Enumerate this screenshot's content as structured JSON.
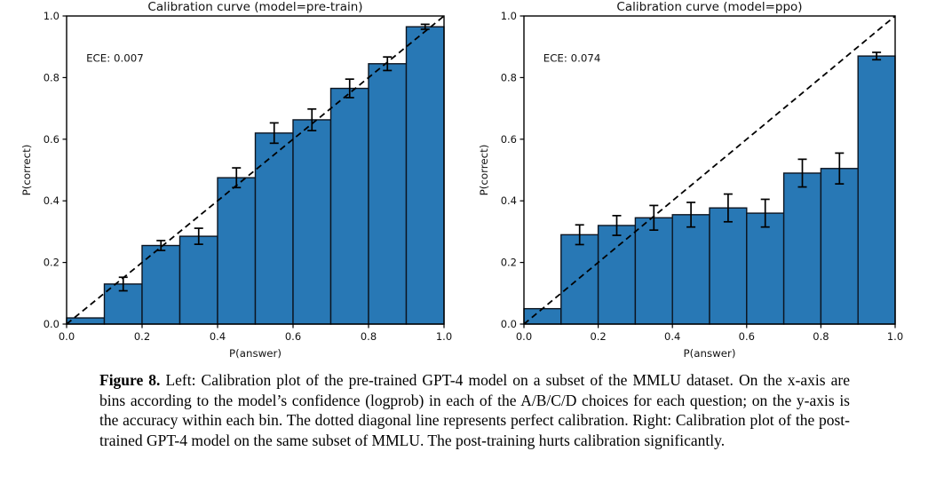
{
  "figure": {
    "caption": {
      "label": "Figure 8.",
      "text": " Left: Calibration plot of the pre-trained GPT-4 model on a subset of the MMLU dataset. On the x-axis are bins according to the model’s confidence (logprob) in each of the A/B/C/D choices for each question; on the y-axis is the accuracy within each bin. The dotted diagonal line represents perfect calibration. Right: Calibration plot of the post-trained GPT-4 model on the same subset of MMLU. The post-training hurts calibration significantly."
    }
  },
  "chart_data": [
    {
      "type": "bar",
      "title": "Calibration curve (model=pre-train)",
      "annotation": "ECE: 0.007",
      "xlabel": "P(answer)",
      "ylabel": "P(correct)",
      "xlim": [
        0.0,
        1.0
      ],
      "ylim": [
        0.0,
        1.0
      ],
      "xtick_labels": [
        "0.0",
        "0.2",
        "0.4",
        "0.6",
        "0.8",
        "1.0"
      ],
      "ytick_labels": [
        "0.0",
        "0.2",
        "0.4",
        "0.6",
        "0.8",
        "1.0"
      ],
      "bin_width": 0.1,
      "bin_starts": [
        0.0,
        0.1,
        0.2,
        0.3,
        0.4,
        0.5,
        0.6,
        0.7,
        0.8,
        0.9
      ],
      "values": [
        0.02,
        0.13,
        0.255,
        0.285,
        0.475,
        0.62,
        0.663,
        0.765,
        0.845,
        0.965
      ],
      "errors": [
        0,
        0.022,
        0.016,
        0.026,
        0.032,
        0.033,
        0.035,
        0.03,
        0.022,
        0.008
      ],
      "diagonal_line": true,
      "grid": false,
      "legend": "none",
      "bar_color": "#2878b5",
      "bar_edge_color": "#0c1420",
      "line_color": "#000000",
      "text_color": "#111111"
    },
    {
      "type": "bar",
      "title": "Calibration curve (model=ppo)",
      "annotation": "ECE: 0.074",
      "xlabel": "P(answer)",
      "ylabel": "P(correct)",
      "xlim": [
        0.0,
        1.0
      ],
      "ylim": [
        0.0,
        1.0
      ],
      "xtick_labels": [
        "0.0",
        "0.2",
        "0.4",
        "0.6",
        "0.8",
        "1.0"
      ],
      "ytick_labels": [
        "0.0",
        "0.2",
        "0.4",
        "0.6",
        "0.8",
        "1.0"
      ],
      "bin_width": 0.1,
      "bin_starts": [
        0.0,
        0.1,
        0.2,
        0.3,
        0.4,
        0.5,
        0.6,
        0.7,
        0.8,
        0.9
      ],
      "values": [
        0.05,
        0.29,
        0.32,
        0.345,
        0.355,
        0.377,
        0.36,
        0.49,
        0.505,
        0.87
      ],
      "errors": [
        0,
        0.032,
        0.032,
        0.04,
        0.04,
        0.045,
        0.045,
        0.045,
        0.05,
        0.012
      ],
      "diagonal_line": true,
      "grid": false,
      "legend": "none",
      "bar_color": "#2878b5",
      "bar_edge_color": "#0c1420",
      "line_color": "#000000",
      "text_color": "#111111"
    }
  ]
}
